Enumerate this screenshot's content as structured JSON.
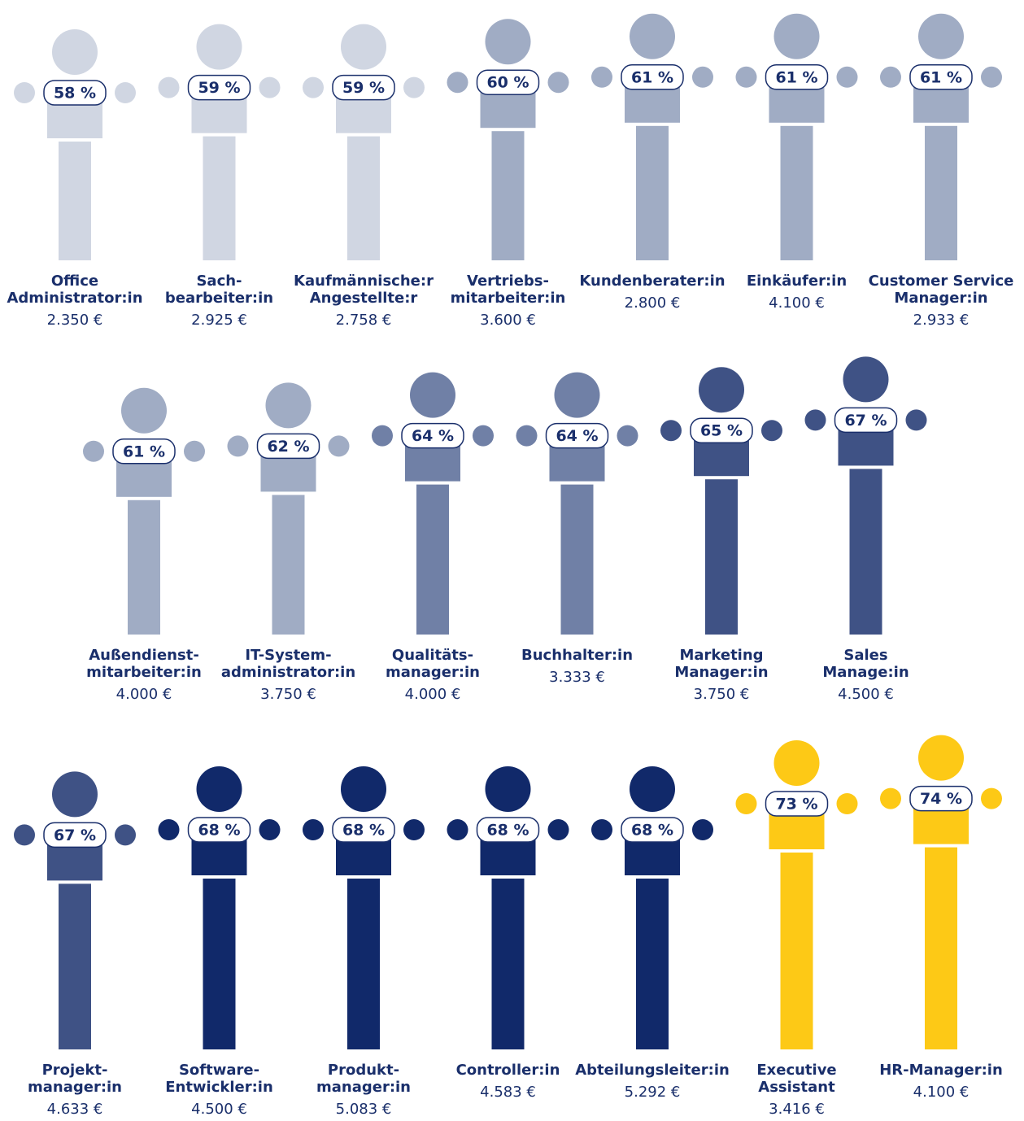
{
  "chart_data": {
    "type": "pictogram",
    "categories": [
      [
        "Office",
        "Administrator:in"
      ],
      [
        "Sach-",
        "bearbeiter:in"
      ],
      [
        "Kaufmännische:r",
        "Angestellte:r"
      ],
      [
        "Vertriebs-",
        "mitarbeiter:in"
      ],
      [
        "Kundenberater:in"
      ],
      [
        "Einkäufer:in"
      ],
      [
        "Customer Service",
        "Manager:in"
      ],
      [
        "Außendienst-",
        "mitarbeiter:in"
      ],
      [
        "IT-System-",
        "administrator:in"
      ],
      [
        "Qualitäts-",
        "manager:in"
      ],
      [
        "Buchhalter:in"
      ],
      [
        "Marketing",
        "Manager:in"
      ],
      [
        "Sales",
        "Manage:in"
      ],
      [
        "Projekt-",
        "manager:in"
      ],
      [
        "Software-",
        "Entwickler:in"
      ],
      [
        "Produkt-",
        "manager:in"
      ],
      [
        "Controller:in"
      ],
      [
        "Abteilungsleiter:in"
      ],
      [
        "Executive",
        "Assistant"
      ],
      [
        "HR-Manager:in"
      ]
    ],
    "series": [
      {
        "values": [
          58,
          59,
          59,
          60,
          61,
          61,
          61,
          61,
          62,
          64,
          64,
          65,
          67,
          67,
          68,
          68,
          68,
          68,
          73,
          74
        ],
        "value_labels": [
          "58 %",
          "59 %",
          "59 %",
          "60 %",
          "61 %",
          "61 %",
          "61 %",
          "61 %",
          "62 %",
          "64 %",
          "64 %",
          "65 %",
          "67 %",
          "67 %",
          "68 %",
          "68 %",
          "68 %",
          "68 %",
          "73 %",
          "74 %"
        ]
      },
      {
        "values": [
          2350,
          2925,
          2758,
          3600,
          2800,
          4100,
          2933,
          4000,
          3750,
          4000,
          3333,
          3750,
          4500,
          4633,
          4500,
          5083,
          4583,
          5292,
          3416,
          4100
        ],
        "value_labels": [
          "2.350 €",
          "2.925 €",
          "2.758 €",
          "3.600 €",
          "2.800 €",
          "4.100 €",
          "2.933 €",
          "4.000 €",
          "3.750 €",
          "4.000 €",
          "3.333 €",
          "3.750 €",
          "4.500 €",
          "4.633 €",
          "4.500 €",
          "5.083 €",
          "4.583 €",
          "5.292 €",
          "3.416 €",
          "4.100 €"
        ]
      }
    ],
    "colors": [
      "#d0d6e2",
      "#d0d6e2",
      "#d0d6e2",
      "#a0acc4",
      "#a0acc4",
      "#a0acc4",
      "#a0acc4",
      "#a0acc4",
      "#a0acc4",
      "#7080a6",
      "#7080a6",
      "#3f5285",
      "#3f5285",
      "#3f5285",
      "#11296a",
      "#11296a",
      "#11296a",
      "#11296a",
      "#fdc916",
      "#fdc916"
    ]
  }
}
